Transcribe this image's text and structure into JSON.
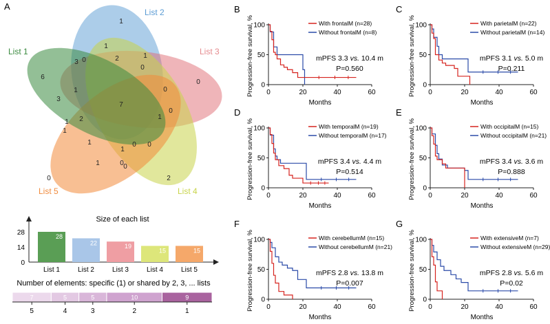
{
  "panels": {
    "A": "A",
    "B": "B",
    "C": "C",
    "D": "D",
    "E": "E",
    "F": "F",
    "G": "G"
  },
  "venn": {
    "lists": [
      {
        "name": "List 1",
        "color": "#3a8a3f"
      },
      {
        "name": "List 2",
        "color": "#5a9bd4"
      },
      {
        "name": "List 3",
        "color": "#e58a8e"
      },
      {
        "name": "List 4",
        "color": "#c8d44a"
      },
      {
        "name": "List 5",
        "color": "#f08a3c"
      }
    ],
    "region_counts": [
      "1",
      "1",
      "3",
      "0",
      "2",
      "0",
      "0",
      "6",
      "1",
      "1",
      "0",
      "3",
      "7",
      "0",
      "1",
      "2",
      "1",
      "1",
      "0",
      "1",
      "1",
      "1",
      "0",
      "0",
      "0",
      "2",
      "0"
    ]
  },
  "list_sizes": {
    "title": "Size of each list",
    "yticks": [
      "28",
      "14",
      "0"
    ],
    "bars": [
      {
        "name": "List 1",
        "value": 28,
        "label": "28",
        "color": "#5a9e55"
      },
      {
        "name": "List 2",
        "value": 22,
        "label": "22",
        "color": "#a9c6e8"
      },
      {
        "name": "List 3",
        "value": 19,
        "label": "19",
        "color": "#ef9ea3"
      },
      {
        "name": "List 4",
        "value": 15,
        "label": "15",
        "color": "#dde67a"
      },
      {
        "name": "List 5",
        "value": 15,
        "label": "15",
        "color": "#f5a86a"
      }
    ]
  },
  "shared": {
    "title": "Number of elements: specific (1) or shared by 2, 3, ... lists",
    "segments": [
      {
        "value": 7,
        "label": "7",
        "shared_by": "5",
        "color": "#ecd9ec"
      },
      {
        "value": 5,
        "label": "5",
        "shared_by": "4",
        "color": "#e3c9e3"
      },
      {
        "value": 5,
        "label": "5",
        "shared_by": "3",
        "color": "#d9b6d9"
      },
      {
        "value": 10,
        "label": "10",
        "shared_by": "2",
        "color": "#cfa3cf"
      },
      {
        "value": 9,
        "label": "9",
        "shared_by": "1",
        "color": "#a9639f"
      }
    ]
  },
  "km_axes": {
    "ylabel": "Progression-free survival, %",
    "xlabel": "Months",
    "yticks": [
      "100",
      "50",
      "0"
    ],
    "xticks": [
      "0",
      "20",
      "40",
      "60"
    ],
    "with_color": "#d6231e",
    "without_color": "#2a4aa8"
  },
  "km_panels": [
    {
      "letter": "B",
      "with_label": "With frontalM (n=28)",
      "without_label": "Without frontalM (n=8)",
      "mpfs_pre": "mPFS 3.3 ",
      "vs": "vs.",
      "mpfs_post": " 10.4 m",
      "pval": "P=0.560",
      "with_curve": [
        [
          0,
          100
        ],
        [
          1,
          89
        ],
        [
          2,
          75
        ],
        [
          3,
          54
        ],
        [
          4,
          50
        ],
        [
          5,
          43
        ],
        [
          7,
          33
        ],
        [
          9,
          29
        ],
        [
          11,
          25
        ],
        [
          14,
          20
        ],
        [
          17,
          12
        ],
        [
          20,
          12
        ],
        [
          51,
          12
        ]
      ],
      "without_curve": [
        [
          0,
          100
        ],
        [
          1,
          88
        ],
        [
          3,
          63
        ],
        [
          5,
          50
        ],
        [
          14,
          50
        ],
        [
          20,
          25
        ],
        [
          21,
          0
        ]
      ]
    },
    {
      "letter": "C",
      "with_label": "With parietalM (n=22)",
      "without_label": "Without parietalM (n=14)",
      "mpfs_pre": "mPFS 3.1 ",
      "vs": "vs.",
      "mpfs_post": " 5.0 m",
      "pval": "P=0.211",
      "with_curve": [
        [
          0,
          100
        ],
        [
          1,
          86
        ],
        [
          2,
          77
        ],
        [
          3,
          50
        ],
        [
          5,
          41
        ],
        [
          7,
          36
        ],
        [
          9,
          32
        ],
        [
          14,
          27
        ],
        [
          16,
          14
        ],
        [
          23,
          0
        ]
      ],
      "without_curve": [
        [
          0,
          100
        ],
        [
          1,
          93
        ],
        [
          2,
          79
        ],
        [
          4,
          64
        ],
        [
          5,
          50
        ],
        [
          7,
          43
        ],
        [
          20,
          43
        ],
        [
          22,
          21
        ],
        [
          51,
          21
        ]
      ]
    },
    {
      "letter": "D",
      "with_label": "With temporalM (n=19)",
      "without_label": "Without temporalM (n=17)",
      "mpfs_pre": "mPFS 3.4 ",
      "vs": "vs.",
      "mpfs_post": " 4.4 m",
      "pval": "P=0.514",
      "with_curve": [
        [
          0,
          100
        ],
        [
          1,
          89
        ],
        [
          2,
          74
        ],
        [
          3,
          58
        ],
        [
          4,
          47
        ],
        [
          6,
          37
        ],
        [
          9,
          32
        ],
        [
          12,
          21
        ],
        [
          14,
          16
        ],
        [
          20,
          8
        ],
        [
          35,
          8
        ]
      ],
      "without_curve": [
        [
          0,
          100
        ],
        [
          1,
          88
        ],
        [
          3,
          65
        ],
        [
          4,
          53
        ],
        [
          5,
          47
        ],
        [
          7,
          41
        ],
        [
          19,
          41
        ],
        [
          22,
          14
        ],
        [
          51,
          14
        ]
      ]
    },
    {
      "letter": "E",
      "with_label": "With occipitalM (n=15)",
      "without_label": "Without occipitalM (n=21)",
      "mpfs_pre": "mPFS 3.4 ",
      "vs": "vs.",
      "mpfs_post": " 3.6 m",
      "pval": "P=0.888",
      "with_curve": [
        [
          0,
          100
        ],
        [
          1,
          87
        ],
        [
          2,
          73
        ],
        [
          3,
          53
        ],
        [
          4,
          47
        ],
        [
          7,
          40
        ],
        [
          9,
          33
        ],
        [
          19,
          33
        ],
        [
          20,
          0
        ]
      ],
      "without_curve": [
        [
          0,
          100
        ],
        [
          1,
          90
        ],
        [
          3,
          71
        ],
        [
          4,
          57
        ],
        [
          5,
          48
        ],
        [
          7,
          38
        ],
        [
          10,
          33
        ],
        [
          20,
          29
        ],
        [
          22,
          14
        ],
        [
          51,
          14
        ]
      ]
    },
    {
      "letter": "F",
      "with_label": "With cerebellumM (n=15)",
      "without_label": "Without cerebellumM (n=21)",
      "mpfs_pre": "mPFS 2.8 ",
      "vs": "vs.",
      "mpfs_post": " 13.8 m",
      "pval": "P=0.007",
      "with_curve": [
        [
          0,
          100
        ],
        [
          1,
          80
        ],
        [
          2,
          60
        ],
        [
          3,
          40
        ],
        [
          4,
          27
        ],
        [
          6,
          13
        ],
        [
          9,
          7
        ],
        [
          14,
          0
        ]
      ],
      "without_curve": [
        [
          0,
          100
        ],
        [
          1,
          95
        ],
        [
          2,
          86
        ],
        [
          4,
          71
        ],
        [
          6,
          62
        ],
        [
          8,
          57
        ],
        [
          11,
          52
        ],
        [
          14,
          48
        ],
        [
          17,
          33
        ],
        [
          22,
          19
        ],
        [
          51,
          19
        ]
      ]
    },
    {
      "letter": "G",
      "with_label": "With extensiveM (n=7)",
      "without_label": "Without extensiveM (n=29)",
      "mpfs_pre": "mPFS 2.8 ",
      "vs": "vs.",
      "mpfs_post": " 5.6 m",
      "pval": "P=0.02",
      "with_curve": [
        [
          0,
          100
        ],
        [
          1,
          71
        ],
        [
          2,
          57
        ],
        [
          3,
          29
        ],
        [
          4,
          14
        ],
        [
          7,
          0
        ]
      ],
      "without_curve": [
        [
          0,
          100
        ],
        [
          1,
          90
        ],
        [
          2,
          79
        ],
        [
          4,
          66
        ],
        [
          6,
          55
        ],
        [
          8,
          48
        ],
        [
          12,
          41
        ],
        [
          15,
          34
        ],
        [
          18,
          28
        ],
        [
          22,
          14
        ],
        [
          51,
          14
        ]
      ]
    }
  ]
}
